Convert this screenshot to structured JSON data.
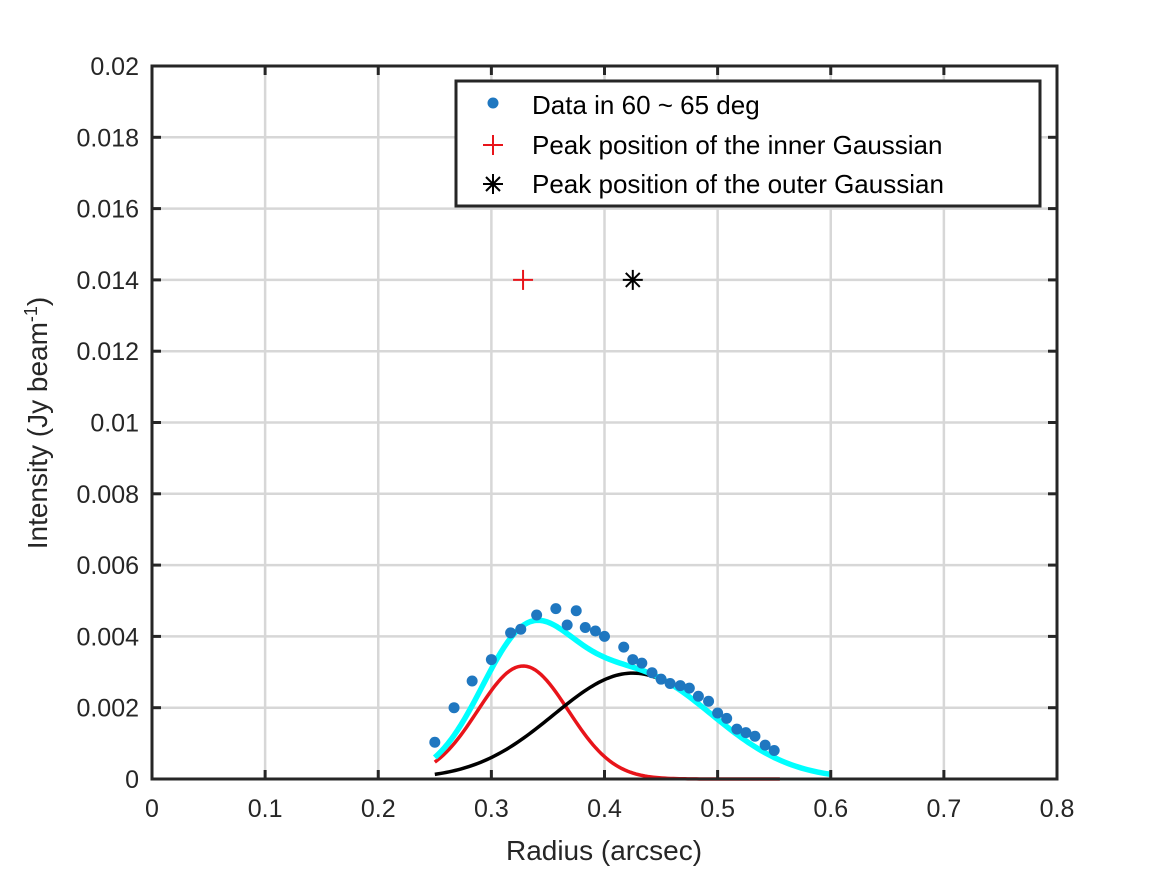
{
  "chart_data": {
    "type": "scatter",
    "xlabel": "Radius (arcsec)",
    "ylabel_main": "Intensity (Jy beam",
    "ylabel_sup": "-1",
    "ylabel_close": ")",
    "xlim": [
      0,
      0.8
    ],
    "ylim": [
      0,
      0.02
    ],
    "x_ticks": [
      "0",
      "0.1",
      "0.2",
      "0.3",
      "0.4",
      "0.5",
      "0.6",
      "0.7",
      "0.8"
    ],
    "y_ticks": [
      "0",
      "0.002",
      "0.004",
      "0.006",
      "0.008",
      "0.01",
      "0.012",
      "0.014",
      "0.016",
      "0.018",
      "0.02"
    ],
    "grid": true,
    "legend_position": "top-right",
    "colors": {
      "data": "#1f77c0",
      "inner": "#e8141a",
      "outer": "#000000",
      "fit": "#00ffff"
    },
    "series": [
      {
        "name": "Data in 60 ~ 65 deg",
        "kind": "points",
        "x": [
          0.25,
          0.267,
          0.283,
          0.3,
          0.317,
          0.326,
          0.34,
          0.357,
          0.367,
          0.375,
          0.383,
          0.392,
          0.4,
          0.417,
          0.425,
          0.433,
          0.442,
          0.45,
          0.458,
          0.467,
          0.475,
          0.483,
          0.492,
          0.5,
          0.508,
          0.517,
          0.525,
          0.533,
          0.542,
          0.55
        ],
        "y": [
          0.00103,
          0.002,
          0.00275,
          0.00335,
          0.0041,
          0.0042,
          0.0046,
          0.00478,
          0.00432,
          0.00472,
          0.00425,
          0.00415,
          0.004,
          0.0037,
          0.00335,
          0.00325,
          0.00298,
          0.0028,
          0.00268,
          0.00262,
          0.00255,
          0.00232,
          0.00218,
          0.00185,
          0.0017,
          0.0014,
          0.0013,
          0.0012,
          0.00095,
          0.0008
        ]
      },
      {
        "name": "Peak position of the inner Gaussian",
        "kind": "marker-plus",
        "x": [
          0.328
        ],
        "y": [
          0.014
        ]
      },
      {
        "name": "Peak position of the outer Gaussian",
        "kind": "marker-asterisk",
        "x": [
          0.425
        ],
        "y": [
          0.014
        ]
      }
    ],
    "curves": [
      {
        "role": "inner Gaussian",
        "amplitude": 0.00317,
        "center": 0.328,
        "sigma": 0.04,
        "xrange": [
          0.25,
          0.555
        ]
      },
      {
        "role": "outer Gaussian",
        "amplitude": 0.00297,
        "center": 0.425,
        "sigma": 0.07,
        "xrange": [
          0.25,
          0.555
        ]
      },
      {
        "role": "sum fit",
        "xrange": [
          0.25,
          0.6
        ]
      }
    ]
  }
}
